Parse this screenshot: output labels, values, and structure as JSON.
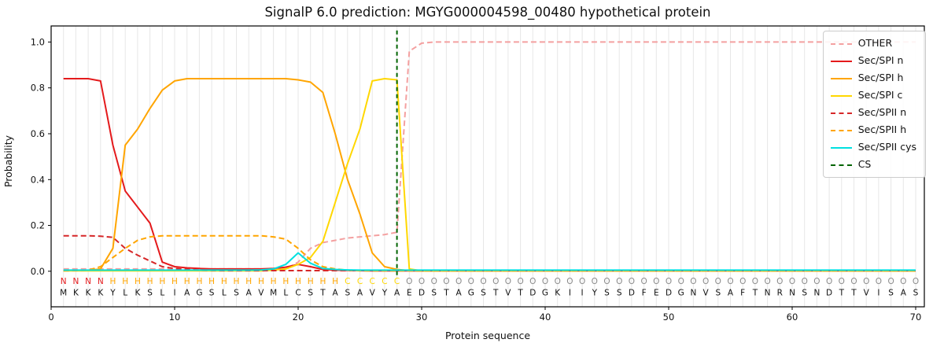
{
  "chart_data": {
    "type": "line",
    "title": "SignalP 6.0 prediction: MGYG000004598_00480 hypothetical protein",
    "xlabel": "Protein sequence",
    "ylabel": "Probability",
    "xlim": [
      0,
      70.7
    ],
    "ylim": [
      -0.155,
      1.07
    ],
    "xticks": [
      0,
      10,
      20,
      30,
      40,
      50,
      60,
      70
    ],
    "yticks": [
      "0.0",
      "0.2",
      "0.4",
      "0.6",
      "0.8",
      "1.0"
    ],
    "grid": "vertical gridline at every residue position",
    "legend_position": "upper right",
    "sequence": "MKKKYLKSLIAGSLSAVMLCSTASAVYAEDSTAGSTVTDGKIIYSSDFEDGNVSAFTNRNSNDTTVISAS",
    "region_labels": "NNNNHHHHHHHHHHHHHHHHHHHCCCCCOOOOOOOOOOOOOOOOOOOOOOOOOOOOOOOOOOOOOOOOOO",
    "region_colors": {
      "N": "#e41a1c",
      "H": "#ffa500",
      "C": "#ffd700",
      "O": "#8a8a8a"
    },
    "sequence_color": "#111111",
    "cs_position": 28,
    "cs_color": "#006400",
    "series": [
      {
        "name": "OTHER",
        "color": "#f4a0a0",
        "dash": true,
        "values": [
          0.01,
          0.01,
          0.01,
          0.01,
          0.01,
          0.01,
          0.01,
          0.01,
          0.01,
          0.01,
          0.01,
          0.01,
          0.01,
          0.01,
          0.01,
          0.01,
          0.01,
          0.01,
          0.01,
          0.04,
          0.1,
          0.125,
          0.135,
          0.145,
          0.15,
          0.155,
          0.16,
          0.17,
          0.96,
          0.995,
          1.0,
          1.0,
          1.0,
          1.0,
          1.0,
          1.0,
          1.0,
          1.0,
          1.0,
          1.0,
          1.0,
          1.0,
          1.0,
          1.0,
          1.0,
          1.0,
          1.0,
          1.0,
          1.0,
          1.0,
          1.0,
          1.0,
          1.0,
          1.0,
          1.0,
          1.0,
          1.0,
          1.0,
          1.0,
          1.0,
          1.0,
          1.0,
          1.0,
          1.0,
          1.0,
          1.0,
          1.0,
          1.0,
          1.0,
          1.0
        ]
      },
      {
        "name": "Sec/SPI n",
        "color": "#e41a1c",
        "dash": false,
        "values": [
          0.84,
          0.84,
          0.84,
          0.83,
          0.55,
          0.35,
          0.28,
          0.21,
          0.04,
          0.02,
          0.015,
          0.012,
          0.01,
          0.01,
          0.01,
          0.01,
          0.01,
          0.012,
          0.018,
          0.03,
          0.02,
          0.008,
          0.005,
          0.004,
          0.003,
          0.002,
          0.002,
          0.002,
          0.002,
          0.002,
          0.002,
          0.002,
          0.002,
          0.002,
          0.002,
          0.002,
          0.002,
          0.002,
          0.002,
          0.002,
          0.002,
          0.002,
          0.002,
          0.002,
          0.002,
          0.002,
          0.002,
          0.002,
          0.002,
          0.002,
          0.002,
          0.002,
          0.002,
          0.002,
          0.002,
          0.002,
          0.002,
          0.002,
          0.002,
          0.002,
          0.002,
          0.002,
          0.002,
          0.002,
          0.002,
          0.002,
          0.002,
          0.002,
          0.002,
          0.002
        ]
      },
      {
        "name": "Sec/SPI h",
        "color": "#ffa500",
        "dash": false,
        "values": [
          0.003,
          0.003,
          0.004,
          0.01,
          0.1,
          0.55,
          0.62,
          0.71,
          0.79,
          0.83,
          0.84,
          0.84,
          0.84,
          0.84,
          0.84,
          0.84,
          0.84,
          0.84,
          0.84,
          0.835,
          0.825,
          0.78,
          0.6,
          0.4,
          0.25,
          0.08,
          0.02,
          0.008,
          0.003,
          0.002,
          0.002,
          0.002,
          0.002,
          0.002,
          0.002,
          0.002,
          0.002,
          0.002,
          0.002,
          0.002,
          0.002,
          0.002,
          0.002,
          0.002,
          0.002,
          0.002,
          0.002,
          0.002,
          0.002,
          0.002,
          0.002,
          0.002,
          0.002,
          0.002,
          0.002,
          0.002,
          0.002,
          0.002,
          0.002,
          0.002,
          0.002,
          0.002,
          0.002,
          0.002,
          0.002,
          0.002,
          0.002,
          0.002,
          0.002,
          0.002
        ]
      },
      {
        "name": "Sec/SPI c",
        "color": "#ffd700",
        "dash": false,
        "values": [
          0.002,
          0.002,
          0.002,
          0.002,
          0.002,
          0.002,
          0.002,
          0.002,
          0.002,
          0.002,
          0.002,
          0.002,
          0.002,
          0.002,
          0.002,
          0.002,
          0.002,
          0.005,
          0.01,
          0.03,
          0.06,
          0.13,
          0.3,
          0.47,
          0.62,
          0.83,
          0.84,
          0.835,
          0.01,
          0.002,
          0.002,
          0.002,
          0.002,
          0.002,
          0.002,
          0.002,
          0.002,
          0.002,
          0.002,
          0.002,
          0.002,
          0.002,
          0.002,
          0.002,
          0.002,
          0.002,
          0.002,
          0.002,
          0.002,
          0.002,
          0.002,
          0.002,
          0.002,
          0.002,
          0.002,
          0.002,
          0.002,
          0.002,
          0.002,
          0.002,
          0.002,
          0.002,
          0.002,
          0.002,
          0.002,
          0.002,
          0.002,
          0.002,
          0.002,
          0.002
        ]
      },
      {
        "name": "Sec/SPII n",
        "color": "#d62728",
        "dash": true,
        "values": [
          0.155,
          0.155,
          0.155,
          0.153,
          0.148,
          0.1,
          0.07,
          0.045,
          0.02,
          0.012,
          0.008,
          0.005,
          0.004,
          0.003,
          0.003,
          0.003,
          0.003,
          0.003,
          0.003,
          0.003,
          0.003,
          0.003,
          0.003,
          0.003,
          0.003,
          0.003,
          0.003,
          0.003,
          0.003,
          0.003,
          0.003,
          0.003,
          0.003,
          0.003,
          0.003,
          0.003,
          0.003,
          0.003,
          0.003,
          0.003,
          0.003,
          0.003,
          0.003,
          0.003,
          0.003,
          0.003,
          0.003,
          0.003,
          0.003,
          0.003,
          0.003,
          0.003,
          0.003,
          0.003,
          0.003,
          0.003,
          0.003,
          0.003,
          0.003,
          0.003,
          0.003,
          0.003,
          0.003,
          0.003,
          0.003,
          0.003,
          0.003,
          0.003,
          0.003,
          0.003
        ]
      },
      {
        "name": "Sec/SPII h",
        "color": "#ffa500",
        "dash": true,
        "values": [
          0.002,
          0.003,
          0.005,
          0.02,
          0.06,
          0.1,
          0.135,
          0.15,
          0.155,
          0.155,
          0.155,
          0.155,
          0.155,
          0.155,
          0.155,
          0.155,
          0.155,
          0.15,
          0.14,
          0.1,
          0.05,
          0.02,
          0.01,
          0.005,
          0.002,
          0.002,
          0.002,
          0.002,
          0.002,
          0.002,
          0.002,
          0.002,
          0.002,
          0.002,
          0.002,
          0.002,
          0.002,
          0.002,
          0.002,
          0.002,
          0.002,
          0.002,
          0.002,
          0.002,
          0.002,
          0.002,
          0.002,
          0.002,
          0.002,
          0.002,
          0.002,
          0.002,
          0.002,
          0.002,
          0.002,
          0.002,
          0.002,
          0.002,
          0.002,
          0.002,
          0.002,
          0.002,
          0.002,
          0.002,
          0.002,
          0.002,
          0.002,
          0.002,
          0.002,
          0.002
        ]
      },
      {
        "name": "Sec/SPII cys",
        "color": "#00e0e0",
        "dash": false,
        "values": [
          0.005,
          0.005,
          0.005,
          0.005,
          0.005,
          0.005,
          0.005,
          0.005,
          0.005,
          0.005,
          0.005,
          0.005,
          0.005,
          0.005,
          0.005,
          0.005,
          0.006,
          0.01,
          0.03,
          0.08,
          0.035,
          0.012,
          0.008,
          0.006,
          0.005,
          0.005,
          0.005,
          0.005,
          0.005,
          0.005,
          0.005,
          0.005,
          0.005,
          0.005,
          0.005,
          0.005,
          0.005,
          0.005,
          0.005,
          0.005,
          0.005,
          0.005,
          0.005,
          0.005,
          0.005,
          0.005,
          0.005,
          0.005,
          0.005,
          0.005,
          0.005,
          0.005,
          0.005,
          0.005,
          0.005,
          0.005,
          0.005,
          0.005,
          0.005,
          0.005,
          0.005,
          0.005,
          0.005,
          0.005,
          0.005,
          0.005,
          0.005,
          0.005,
          0.005,
          0.005
        ]
      }
    ],
    "legend": [
      {
        "label": "OTHER",
        "color": "#f4a0a0",
        "dash": true
      },
      {
        "label": "Sec/SPI n",
        "color": "#e41a1c",
        "dash": false
      },
      {
        "label": "Sec/SPI h",
        "color": "#ffa500",
        "dash": false
      },
      {
        "label": "Sec/SPI c",
        "color": "#ffd700",
        "dash": false
      },
      {
        "label": "Sec/SPII n",
        "color": "#d62728",
        "dash": true
      },
      {
        "label": "Sec/SPII h",
        "color": "#ffa500",
        "dash": true
      },
      {
        "label": "Sec/SPII cys",
        "color": "#00e0e0",
        "dash": false
      },
      {
        "label": "CS",
        "color": "#006400",
        "dash": true
      }
    ]
  }
}
